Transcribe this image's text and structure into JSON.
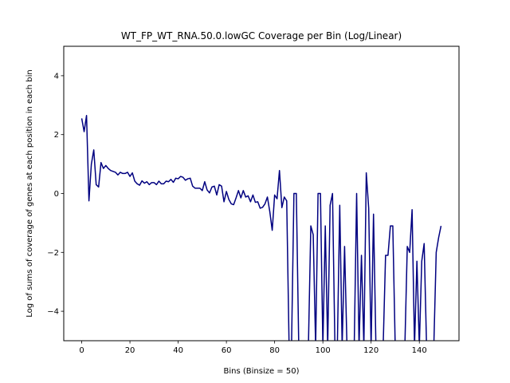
{
  "chart_data": {
    "type": "line",
    "title": "WT_FP_WT_RNA.50.0.lowGC Coverage per Bin (Log/Linear)",
    "xlabel": "Bins (Binsize = 50)",
    "ylabel": "Log of sums of coverage of genes at each position in each bin",
    "xlim": [
      -7.45,
      156.45
    ],
    "ylim": [
      -5,
      5
    ],
    "xticks": [
      0,
      20,
      40,
      60,
      80,
      100,
      120,
      140
    ],
    "yticks": [
      -4,
      -2,
      0,
      2,
      4
    ],
    "grid": false,
    "line_color": "#000080",
    "series": [
      {
        "x": [
          0,
          1,
          2,
          3,
          4,
          5,
          6,
          7,
          8,
          9,
          10,
          11,
          12,
          13,
          14,
          15,
          16,
          17,
          18,
          19,
          20,
          21,
          22,
          23,
          24,
          25,
          26,
          27,
          28,
          29,
          30,
          31,
          32,
          33,
          34,
          35,
          36,
          37,
          38,
          39,
          40,
          41,
          42,
          43,
          44,
          45,
          46,
          47,
          48,
          49,
          50,
          51,
          52,
          53,
          54,
          55,
          56,
          57,
          58,
          59,
          60,
          61,
          62,
          63,
          64,
          65,
          66,
          67,
          68,
          69,
          70,
          71,
          72,
          73,
          74,
          75,
          76,
          77,
          78,
          79,
          80,
          81,
          82,
          83,
          84,
          85,
          86,
          87,
          88,
          89,
          90,
          91,
          92,
          93,
          94,
          95,
          96,
          97,
          98,
          99,
          100,
          101,
          102,
          103,
          104,
          105,
          106,
          107,
          108,
          109,
          110,
          111,
          112,
          113,
          114,
          115,
          116,
          117,
          118,
          119,
          120,
          121,
          122,
          123,
          124,
          125,
          126,
          127,
          128,
          129,
          130,
          131,
          132,
          133,
          134,
          135,
          136,
          137,
          138,
          139,
          140,
          141,
          142,
          143,
          144,
          145,
          146,
          147,
          148,
          149
        ],
        "y": [
          2.55,
          2.1,
          2.65,
          -0.25,
          1.0,
          1.48,
          0.3,
          0.22,
          1.05,
          0.85,
          0.95,
          0.85,
          0.78,
          0.75,
          0.72,
          0.63,
          0.72,
          0.68,
          0.68,
          0.72,
          0.58,
          0.7,
          0.42,
          0.33,
          0.28,
          0.43,
          0.35,
          0.4,
          0.3,
          0.37,
          0.37,
          0.3,
          0.42,
          0.33,
          0.33,
          0.42,
          0.4,
          0.48,
          0.38,
          0.52,
          0.5,
          0.58,
          0.55,
          0.45,
          0.5,
          0.52,
          0.25,
          0.18,
          0.18,
          0.18,
          0.1,
          0.4,
          0.12,
          0.02,
          0.22,
          0.25,
          -0.05,
          0.3,
          0.25,
          -0.28,
          0.07,
          -0.2,
          -0.35,
          -0.38,
          -0.15,
          0.1,
          -0.15,
          0.1,
          -0.12,
          -0.08,
          -0.28,
          -0.05,
          -0.3,
          -0.28,
          -0.5,
          -0.47,
          -0.35,
          -0.12,
          -0.62,
          -1.25,
          -0.05,
          -0.18,
          0.78,
          -0.48,
          -0.12,
          -0.25,
          -5.2,
          -5.2,
          0.0,
          0.0,
          -5.2,
          -5.2,
          -5.2,
          -5.2,
          -5.2,
          -1.1,
          -1.4,
          -5.2,
          0.0,
          0.0,
          -5.2,
          -1.1,
          -5.2,
          -0.4,
          0.0,
          -5.2,
          -5.2,
          -0.4,
          -5.2,
          -1.8,
          -5.2,
          -5.2,
          -5.2,
          -5.2,
          0.0,
          -5.2,
          -2.1,
          -5.2,
          0.7,
          -0.5,
          -5.2,
          -0.7,
          -5.2,
          -5.2,
          -5.2,
          -5.2,
          -2.1,
          -2.1,
          -1.1,
          -1.1,
          -5.2,
          -5.2,
          -5.2,
          -5.2,
          -5.2,
          -1.8,
          -2.0,
          -0.55,
          -5.2,
          -2.3,
          -5.2,
          -2.3,
          -1.7,
          -5.2,
          -5.2,
          -5.2,
          -5.2,
          -2.0,
          -1.5,
          -1.1
        ]
      }
    ]
  }
}
